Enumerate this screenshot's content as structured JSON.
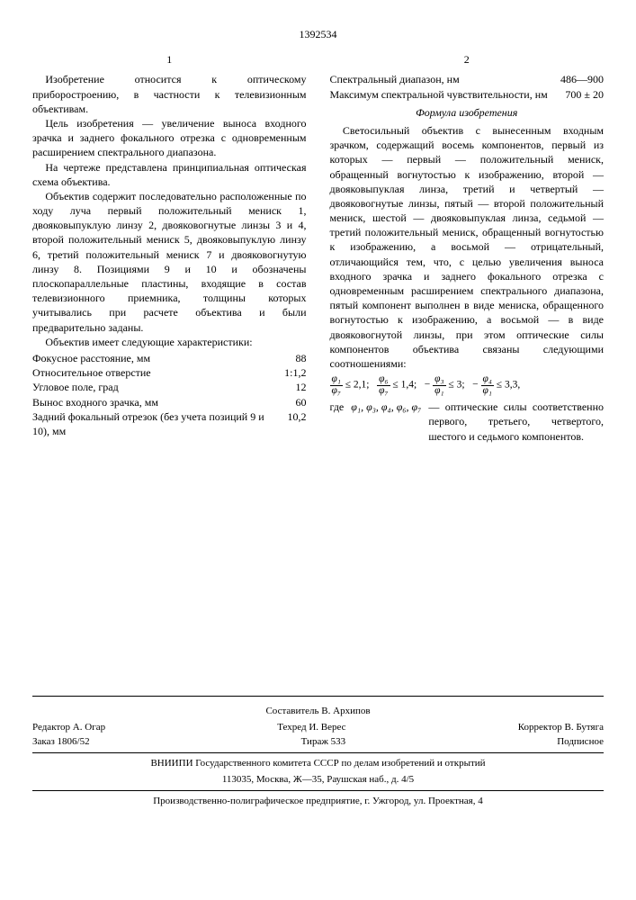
{
  "docnum": "1392534",
  "col1num": "1",
  "col2num": "2",
  "col1": {
    "p1": "Изобретение относится к оптическому приборостроению, в частности к телевизионным объективам.",
    "p2": "Цель изобретения — увеличение выноса входного зрачка и заднего фокального отрезка с одновременным расширением спектрального диапазона.",
    "p3": "На чертеже представлена принципиальная оптическая схема объектива.",
    "p4": "Объектив содержит последовательно расположенные по ходу луча первый положительный мениск 1, двояковыпуклую линзу 2, двояковогнутые линзы 3 и 4, второй положительный мениск 5, двояковыпуклую линзу 6, третий положительный мениск 7 и двояковогнутую линзу 8. Позициями 9 и 10 и обозначены плоскопараллельные пластины, входящие в состав телевизионного приемника, толщины которых учитывались при расчете объектива и были предварительно заданы.",
    "p5": "Объектив имеет следующие характеристики:",
    "specs": [
      {
        "k": "Фокусное расстояние, мм",
        "v": "88"
      },
      {
        "k": "Относительное отверстие",
        "v": "1:1,2"
      },
      {
        "k": "Угловое поле, град",
        "v": "12"
      },
      {
        "k": "Вынос входного зрачка, мм",
        "v": "60"
      },
      {
        "k": "Задний фокальный отрезок (без учета позиций 9 и 10), мм",
        "v": "10,2"
      }
    ]
  },
  "col2": {
    "specs": [
      {
        "k": "Спектральный диапазон, нм",
        "v": "486—900"
      },
      {
        "k": "Максимум спектральной чувствительности, нм",
        "v": "700 ± 20"
      }
    ],
    "formula_title": "Формула изобретения",
    "claim": "Светосильный объектив с вынесенным входным зрачком, содержащий восемь компонентов, первый из которых — первый — положительный мениск, обращенный вогнутостью к изображению, второй — двояковыпуклая линза, третий и четвертый — двояковогнутые линзы, пятый — второй положительный мениск, шестой — двояковыпуклая линза, седьмой — третий положительный мениск, обращенный вогнутостью к изображению, а восьмой — отрицательный, отличающийся тем, что, с целью увеличения выноса входного зрачка и заднего фокального отрезка с одновременным расширением спектрального диапазона, пятый компонент выполнен в виде мениска, обращенного вогнутостью к изображению, а восьмой — в виде двояковогнутой линзы, при этом оптические силы компонентов объектива связаны следующими соотношениями:",
    "r1n": "φ₁",
    "r1d": "φ₇",
    "r1v": "≤ 2,1;",
    "r2n": "φ₆",
    "r2d": "φ₇",
    "r2v": "≤ 1,4;",
    "r3op": "−",
    "r3n": "φ₃",
    "r3d": "φ₁",
    "r3v": "≤ 3;",
    "r4op": "−",
    "r4n": "φ₄",
    "r4d": "φ₁",
    "r4v": "≤ 3,3,",
    "where_lbl": "где",
    "where_syms": "φ₁, φ₃, φ₄, φ₆, φ₇",
    "where_desc": "— оптические силы соответственно первого, третьего, четвертого, шестого и седьмого компонентов."
  },
  "footer": {
    "compiler": "Составитель В. Архипов",
    "editor": "Редактор А. Огар",
    "tech": "Техред И. Верес",
    "corrector": "Корректор В. Бутяга",
    "order": "Заказ 1806/52",
    "tirazh": "Тираж 533",
    "sub": "Подписное",
    "org": "ВНИИПИ Государственного комитета СССР по делам изобретений и открытий",
    "addr": "113035, Москва, Ж—35, Раушская наб., д. 4/5",
    "print": "Производственно-полиграфическое предприятие, г. Ужгород, ул. Проектная, 4"
  }
}
